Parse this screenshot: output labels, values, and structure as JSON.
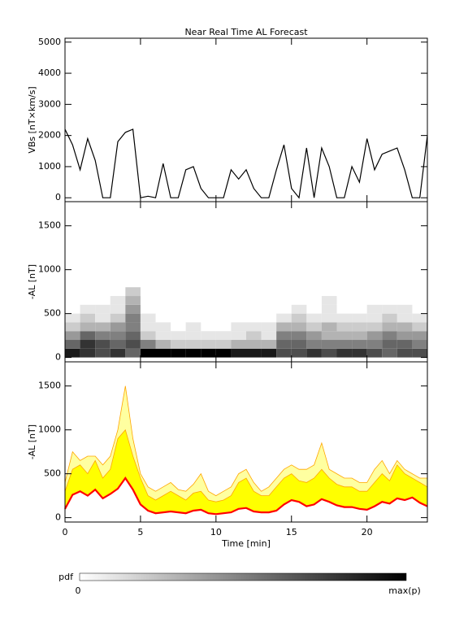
{
  "chart_data": [
    {
      "type": "line",
      "title": "Near Real Time AL Forecast",
      "ylabel": "VBs [nT×km/s]",
      "color": "#000000",
      "xlim": [
        0,
        24
      ],
      "xticks": [
        0,
        5,
        10,
        15,
        20
      ],
      "ylim": [
        -125,
        5125
      ],
      "yticks": [
        0,
        1000,
        2000,
        3000,
        4000,
        5000
      ],
      "x": [
        0,
        0.5,
        1,
        1.5,
        2,
        2.5,
        3,
        3.5,
        4,
        4.5,
        5,
        5.5,
        6,
        6.5,
        7,
        7.5,
        8,
        8.5,
        9,
        9.5,
        10,
        10.5,
        11,
        11.5,
        12,
        12.5,
        13,
        13.5,
        14,
        14.5,
        15,
        15.5,
        16,
        16.5,
        17,
        17.5,
        18,
        18.5,
        19,
        19.5,
        20,
        20.5,
        21,
        21.5,
        22,
        22.5,
        23,
        23.5,
        24
      ],
      "values": [
        2200,
        1700,
        900,
        1900,
        1200,
        0,
        0,
        1800,
        2100,
        2200,
        0,
        50,
        0,
        1100,
        0,
        0,
        900,
        1000,
        300,
        0,
        0,
        0,
        900,
        600,
        900,
        300,
        0,
        0,
        900,
        1700,
        300,
        0,
        1600,
        0,
        1600,
        1000,
        0,
        0,
        1000,
        500,
        1900,
        900,
        1400,
        1500,
        1600,
        900,
        0,
        0,
        2000
      ]
    },
    {
      "type": "heatmap",
      "ylabel": "-AL [nT]",
      "xlim": [
        0,
        24
      ],
      "xticks": [
        0,
        5,
        10,
        15,
        20
      ],
      "ylim": [
        -50,
        1775
      ],
      "yticks": [
        0,
        500,
        1000,
        1500
      ],
      "xbins": [
        0,
        1,
        2,
        3,
        4,
        5,
        6,
        7,
        8,
        9,
        10,
        11,
        12,
        13,
        14,
        15,
        16,
        17,
        18,
        19,
        20,
        21,
        22,
        23,
        24
      ],
      "ybins": [
        0,
        100,
        200,
        300,
        400,
        500,
        600,
        700,
        800
      ],
      "values": [
        [
          0.9,
          0.6,
          0.4,
          0.2,
          0.1,
          0,
          0,
          0
        ],
        [
          0.8,
          0.8,
          0.6,
          0.3,
          0.2,
          0.1,
          0,
          0
        ],
        [
          0.7,
          0.7,
          0.5,
          0.3,
          0.1,
          0.1,
          0,
          0
        ],
        [
          0.8,
          0.6,
          0.5,
          0.4,
          0.2,
          0.1,
          0.1,
          0
        ],
        [
          0.6,
          0.7,
          0.6,
          0.5,
          0.5,
          0.4,
          0.3,
          0.2
        ],
        [
          1,
          0.5,
          0.2,
          0.1,
          0.1,
          0,
          0,
          0
        ],
        [
          1,
          0.3,
          0.1,
          0.1,
          0,
          0,
          0,
          0
        ],
        [
          1,
          0.2,
          0.1,
          0,
          0,
          0,
          0,
          0
        ],
        [
          1,
          0.2,
          0.1,
          0.1,
          0,
          0,
          0,
          0
        ],
        [
          1,
          0.2,
          0.1,
          0,
          0,
          0,
          0,
          0
        ],
        [
          1,
          0.2,
          0.1,
          0,
          0,
          0,
          0,
          0
        ],
        [
          0.9,
          0.3,
          0.1,
          0.1,
          0,
          0,
          0,
          0
        ],
        [
          0.9,
          0.3,
          0.2,
          0.1,
          0,
          0,
          0,
          0
        ],
        [
          0.9,
          0.3,
          0.1,
          0.1,
          0,
          0,
          0,
          0
        ],
        [
          0.7,
          0.6,
          0.5,
          0.3,
          0.1,
          0,
          0,
          0
        ],
        [
          0.7,
          0.6,
          0.5,
          0.3,
          0.2,
          0.1,
          0,
          0
        ],
        [
          0.8,
          0.5,
          0.4,
          0.2,
          0.1,
          0,
          0,
          0
        ],
        [
          0.7,
          0.5,
          0.3,
          0.3,
          0.1,
          0.1,
          0.1,
          0
        ],
        [
          0.8,
          0.5,
          0.3,
          0.2,
          0.1,
          0,
          0,
          0
        ],
        [
          0.8,
          0.5,
          0.3,
          0.2,
          0.1,
          0,
          0,
          0
        ],
        [
          0.7,
          0.5,
          0.4,
          0.2,
          0.1,
          0.1,
          0,
          0
        ],
        [
          0.6,
          0.6,
          0.5,
          0.3,
          0.2,
          0.1,
          0,
          0
        ],
        [
          0.7,
          0.6,
          0.4,
          0.3,
          0.1,
          0.1,
          0,
          0
        ],
        [
          0.7,
          0.5,
          0.4,
          0.2,
          0.1,
          0,
          0,
          0
        ]
      ],
      "colorbar": {
        "label": "pdf",
        "min_label": "0",
        "max_label": "max(p)"
      }
    },
    {
      "type": "band",
      "ylabel": "-AL [nT]",
      "xlabel": "Time [min]",
      "xlim": [
        0,
        24
      ],
      "xticks": [
        0,
        5,
        10,
        15,
        20
      ],
      "ylim": [
        -50,
        1775
      ],
      "yticks": [
        0,
        500,
        1000,
        1500
      ],
      "x": [
        0,
        0.5,
        1,
        1.5,
        2,
        2.5,
        3,
        3.5,
        4,
        4.5,
        5,
        5.5,
        6,
        6.5,
        7,
        7.5,
        8,
        8.5,
        9,
        9.5,
        10,
        10.5,
        11,
        11.5,
        12,
        12.5,
        13,
        13.5,
        14,
        14.5,
        15,
        15.5,
        16,
        16.5,
        17,
        17.5,
        18,
        18.5,
        19,
        19.5,
        20,
        20.5,
        21,
        21.5,
        22,
        22.5,
        23,
        23.5,
        24
      ],
      "series": [
        {
          "color": "#ffa500",
          "values": [
            400,
            750,
            650,
            700,
            700,
            600,
            700,
            1000,
            1500,
            900,
            500,
            350,
            300,
            350,
            400,
            320,
            300,
            380,
            500,
            300,
            250,
            300,
            350,
            500,
            550,
            400,
            300,
            350,
            450,
            550,
            600,
            550,
            550,
            600,
            850,
            550,
            500,
            450,
            450,
            400,
            400,
            550,
            650,
            500,
            650,
            550,
            500,
            450,
            450
          ]
        },
        {
          "color": "#ffff00",
          "values": [
            300,
            550,
            600,
            500,
            650,
            450,
            550,
            900,
            1000,
            700,
            450,
            250,
            200,
            250,
            300,
            250,
            200,
            280,
            300,
            200,
            180,
            200,
            250,
            400,
            450,
            300,
            250,
            250,
            350,
            450,
            500,
            420,
            400,
            450,
            550,
            450,
            380,
            350,
            350,
            300,
            300,
            400,
            500,
            420,
            600,
            500,
            450,
            400,
            350
          ]
        },
        {
          "color": "#ff0000",
          "values": [
            100,
            260,
            300,
            250,
            320,
            220,
            270,
            330,
            450,
            320,
            150,
            80,
            50,
            60,
            70,
            60,
            50,
            80,
            90,
            50,
            40,
            50,
            60,
            100,
            110,
            70,
            60,
            60,
            80,
            150,
            200,
            180,
            130,
            150,
            210,
            180,
            140,
            120,
            120,
            100,
            90,
            130,
            180,
            160,
            220,
            200,
            230,
            170,
            130
          ]
        }
      ]
    }
  ]
}
